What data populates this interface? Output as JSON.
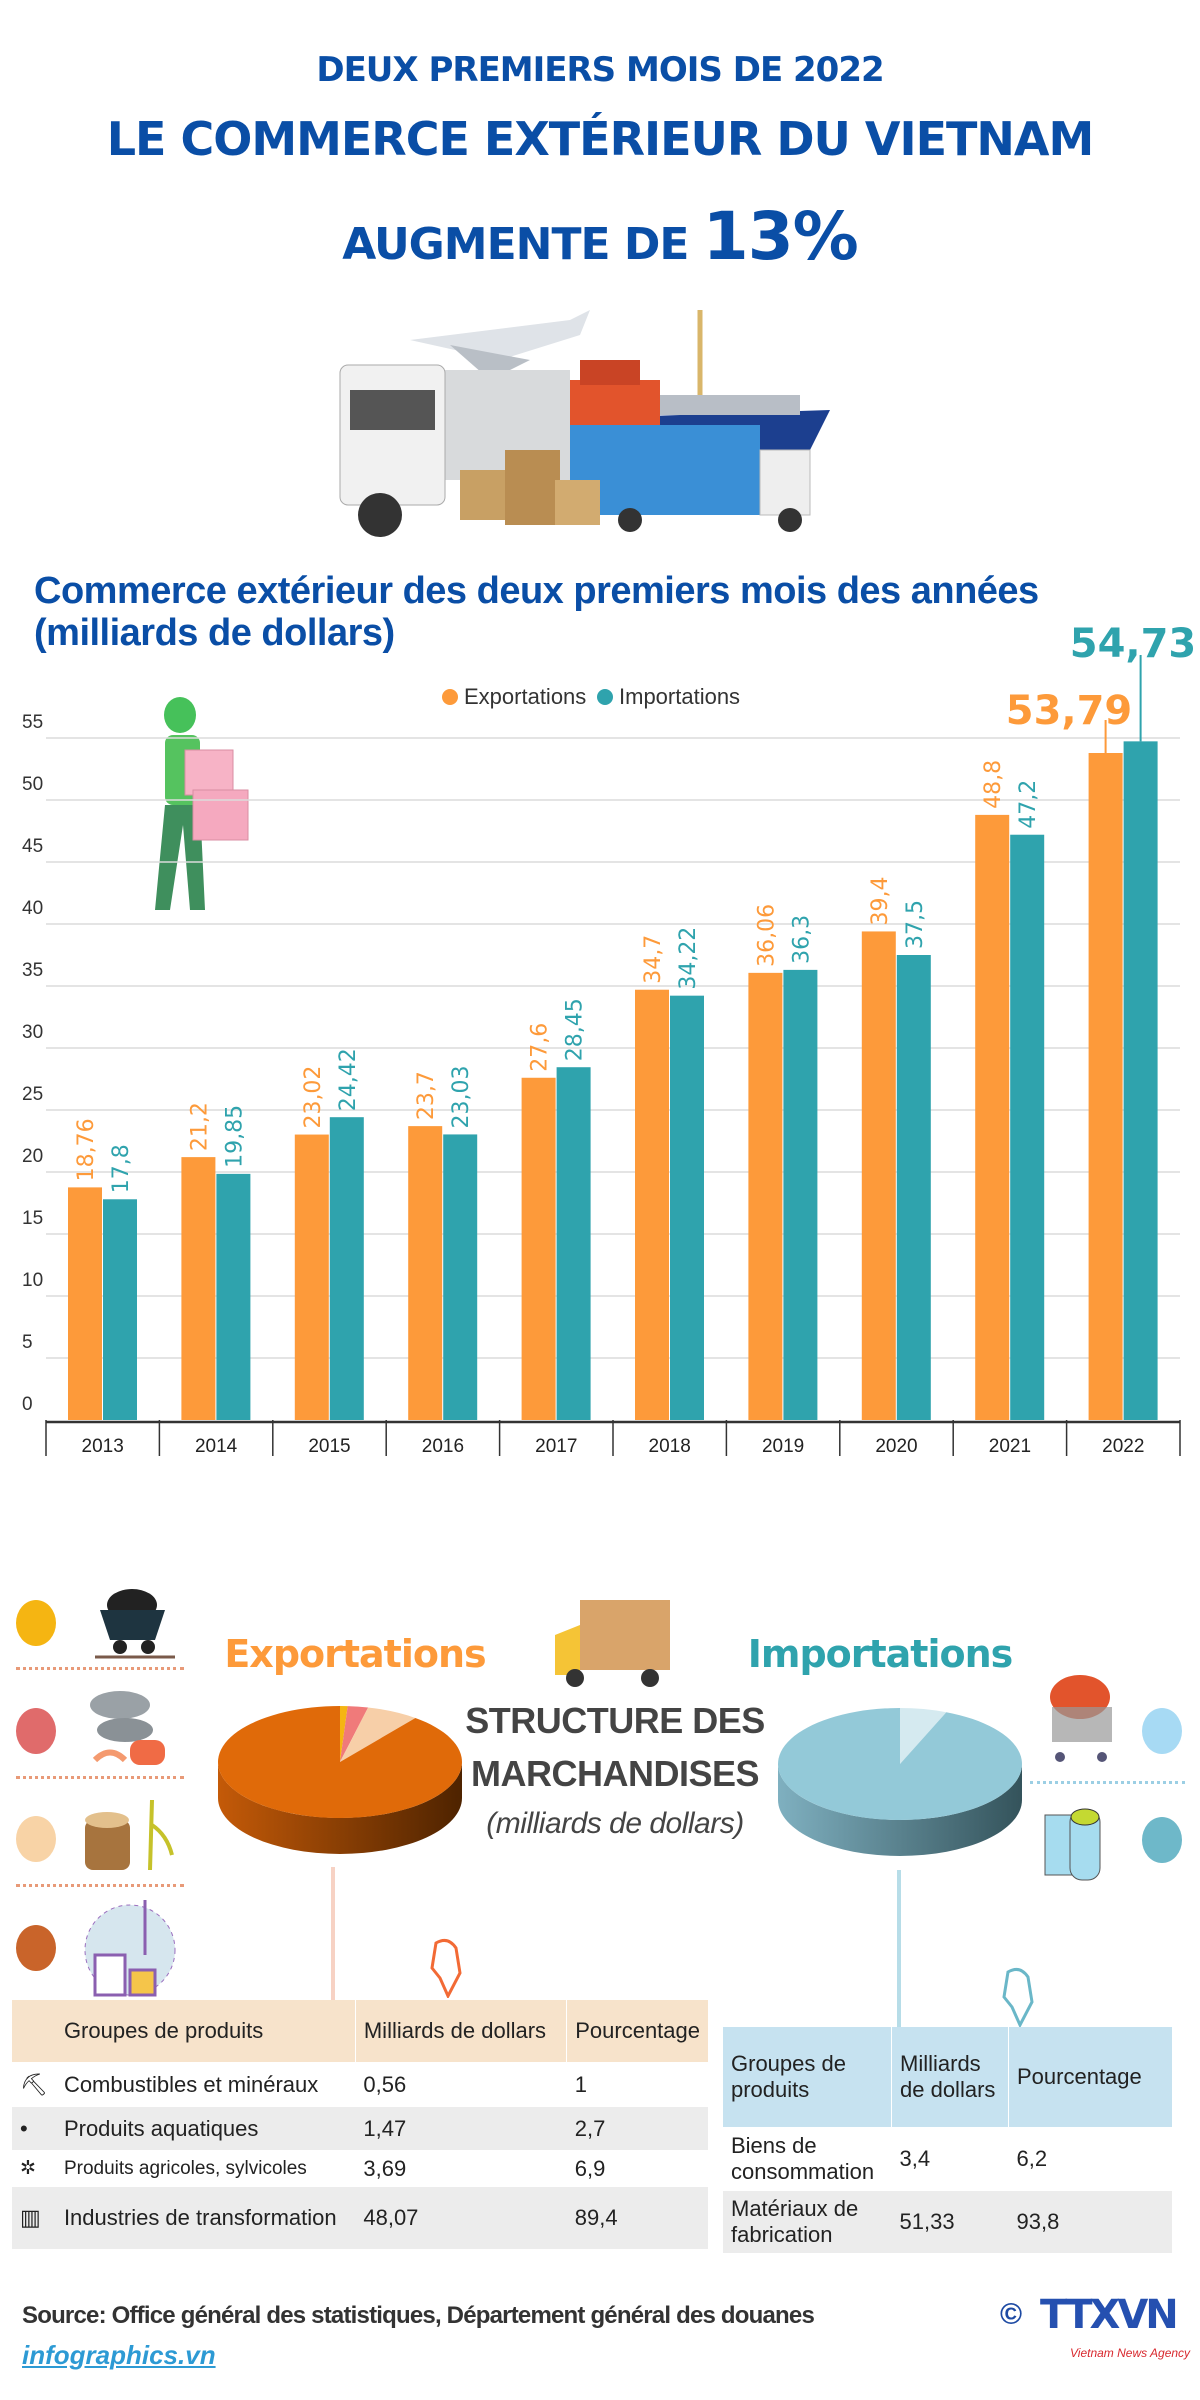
{
  "header": {
    "line1": "DEUX PREMIERS MOIS DE 2022",
    "line2": "LE COMMERCE EXTÉRIEUR DU VIETNAM",
    "line3_prefix": "AUGMENTE DE",
    "line3_value": "13%"
  },
  "chart_data": {
    "type": "bar",
    "title_line1": "Commerce extérieur des deux premiers mois des années",
    "title_line2": "(milliards de dollars)",
    "categories": [
      "2013",
      "2014",
      "2015",
      "2016",
      "2017",
      "2018",
      "2019",
      "2020",
      "2021",
      "2022"
    ],
    "series": [
      {
        "name": "Exportations",
        "color": "#fd9a3a",
        "values": [
          18.76,
          21.2,
          23.02,
          23.7,
          27.6,
          34.7,
          36.06,
          39.4,
          48.8,
          53.79
        ],
        "labels": [
          "18,76",
          "21,2",
          "23,02",
          "23,7",
          "27,6",
          "34,7",
          "36,06",
          "39,4",
          "48,8",
          "53,79"
        ]
      },
      {
        "name": "Importations",
        "color": "#2fa3ad",
        "values": [
          17.8,
          19.85,
          24.42,
          23.03,
          28.45,
          34.22,
          36.3,
          37.5,
          47.2,
          54.73
        ],
        "labels": [
          "17,8",
          "19,85",
          "24,42",
          "23,03",
          "28,45",
          "34,22",
          "36,3",
          "37,5",
          "47,2",
          "54,73"
        ]
      }
    ],
    "yticks": [
      0,
      5,
      10,
      15,
      20,
      25,
      30,
      35,
      40,
      45,
      50,
      55
    ],
    "ylim": [
      0,
      55
    ],
    "grid": true,
    "legend": "top-center"
  },
  "structure": {
    "title_line1": "STRUCTURE DES",
    "title_line2": "MARCHANDISES",
    "unit": "(milliards de dollars)",
    "exports": {
      "label": "Exportations",
      "color": "#fd9a3a",
      "pie": [
        {
          "name": "Combustibles et minéraux",
          "percent": 1,
          "color": "#f5b512"
        },
        {
          "name": "Produits aquatiques",
          "percent": 2.7,
          "color": "#f07a7a"
        },
        {
          "name": "Produits agricoles, sylvicoles",
          "percent": 6.9,
          "color": "#f7cfa8"
        },
        {
          "name": "Industries de transformation",
          "percent": 89.4,
          "color": "#e06a09"
        }
      ],
      "table": {
        "headers": [
          "Groupes de produits",
          "Milliards de dollars",
          "Pourcentage"
        ],
        "rows": [
          {
            "group": "Combustibles et minéraux",
            "value": "0,56",
            "percent": "1"
          },
          {
            "group": "Produits aquatiques",
            "value": "1,47",
            "percent": "2,7"
          },
          {
            "group": "Produits agricoles, sylvicoles",
            "value": "3,69",
            "percent": "6,9"
          },
          {
            "group": "Industries de transformation",
            "value": "48,07",
            "percent": "89,4"
          }
        ]
      }
    },
    "imports": {
      "label": "Importations",
      "color": "#2fa3ad",
      "pie": [
        {
          "name": "Biens de consommation",
          "percent": 6.2,
          "color": "#d5eaf0"
        },
        {
          "name": "Matériaux de fabrication",
          "percent": 93.8,
          "color": "#93c9d8"
        }
      ],
      "table": {
        "headers": [
          "Groupes de produits",
          "Milliards de dollars",
          "Pourcentage"
        ],
        "rows": [
          {
            "group": "Biens de consommation",
            "value": "3,4",
            "percent": "6,2"
          },
          {
            "group": "Matériaux de fabrication",
            "value": "51,33",
            "percent": "93,8"
          }
        ]
      }
    }
  },
  "footer": {
    "source": "Source: Office général des statistiques, Département général des douanes",
    "link": "infographics.vn",
    "logo_text": "TTXVN",
    "logo_sub": "Vietnam News Agency",
    "copyright": "©"
  }
}
